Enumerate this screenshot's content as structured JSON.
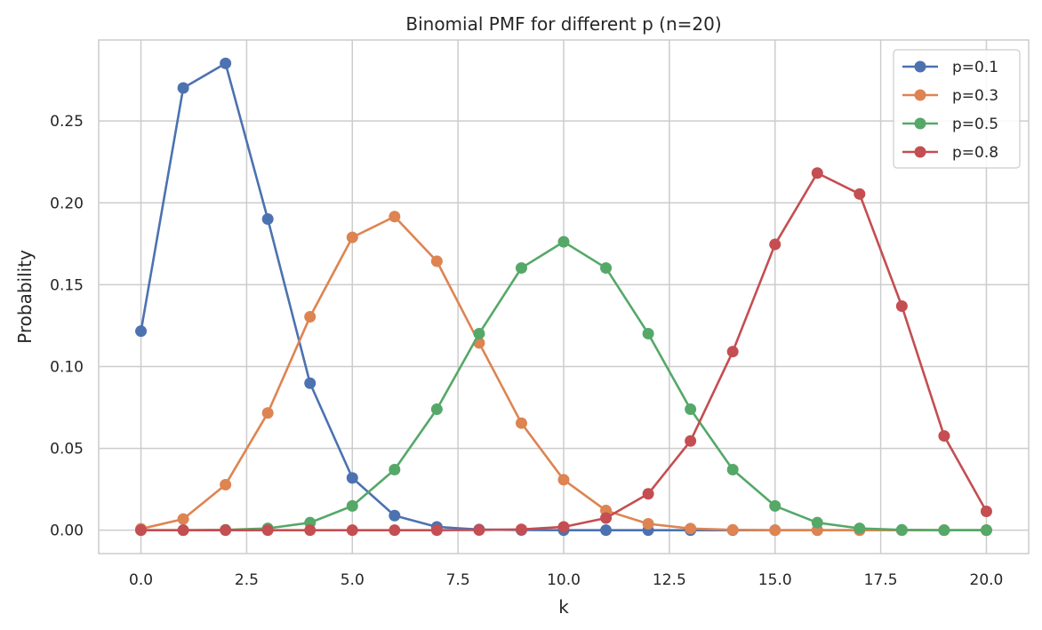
{
  "chart_data": {
    "type": "line",
    "title": "Binomial PMF for different p (n=20)",
    "xlabel": "k",
    "ylabel": "Probability",
    "xlim": [
      -1.0,
      21.0
    ],
    "ylim": [
      -0.0143,
      0.2995
    ],
    "x_ticks": [
      0.0,
      2.5,
      5.0,
      7.5,
      10.0,
      12.5,
      15.0,
      17.5,
      20.0
    ],
    "x_tick_labels": [
      "0.0",
      "2.5",
      "5.0",
      "7.5",
      "10.0",
      "12.5",
      "15.0",
      "17.5",
      "20.0"
    ],
    "y_ticks": [
      0.0,
      0.05,
      0.1,
      0.15,
      0.2,
      0.25
    ],
    "y_tick_labels": [
      "0.00",
      "0.05",
      "0.10",
      "0.15",
      "0.20",
      "0.25"
    ],
    "grid": true,
    "legend_position": "top-right",
    "x": [
      0,
      1,
      2,
      3,
      4,
      5,
      6,
      7,
      8,
      9,
      10,
      11,
      12,
      13,
      14,
      15,
      16,
      17,
      18,
      19,
      20
    ],
    "series": [
      {
        "name": "p=0.1",
        "color": "#4c72b0",
        "values": [
          0.1216,
          0.2702,
          0.2852,
          0.1901,
          0.0898,
          0.0319,
          0.0089,
          0.002,
          0.0004,
          0.0001,
          0.0,
          0.0,
          0.0,
          0.0,
          0.0,
          0.0,
          0.0,
          0.0,
          0.0,
          0.0,
          0.0
        ]
      },
      {
        "name": "p=0.3",
        "color": "#dd8452",
        "values": [
          0.0008,
          0.0068,
          0.0278,
          0.0716,
          0.1304,
          0.1789,
          0.1916,
          0.1643,
          0.1144,
          0.0654,
          0.0308,
          0.012,
          0.0039,
          0.001,
          0.0002,
          0.0,
          0.0,
          0.0,
          0.0,
          0.0,
          0.0
        ]
      },
      {
        "name": "p=0.5",
        "color": "#55a868",
        "values": [
          0.0,
          0.0,
          0.0002,
          0.0011,
          0.0046,
          0.0148,
          0.037,
          0.0739,
          0.1201,
          0.1602,
          0.1762,
          0.1602,
          0.1201,
          0.0739,
          0.037,
          0.0148,
          0.0046,
          0.0011,
          0.0002,
          0.0,
          0.0
        ]
      },
      {
        "name": "p=0.8",
        "color": "#c44e52",
        "values": [
          0.0,
          0.0,
          0.0,
          0.0,
          0.0,
          0.0,
          0.0,
          0.0,
          0.0001,
          0.0005,
          0.002,
          0.0074,
          0.0222,
          0.0545,
          0.1091,
          0.1746,
          0.2182,
          0.2054,
          0.1369,
          0.0576,
          0.0115
        ]
      }
    ]
  }
}
